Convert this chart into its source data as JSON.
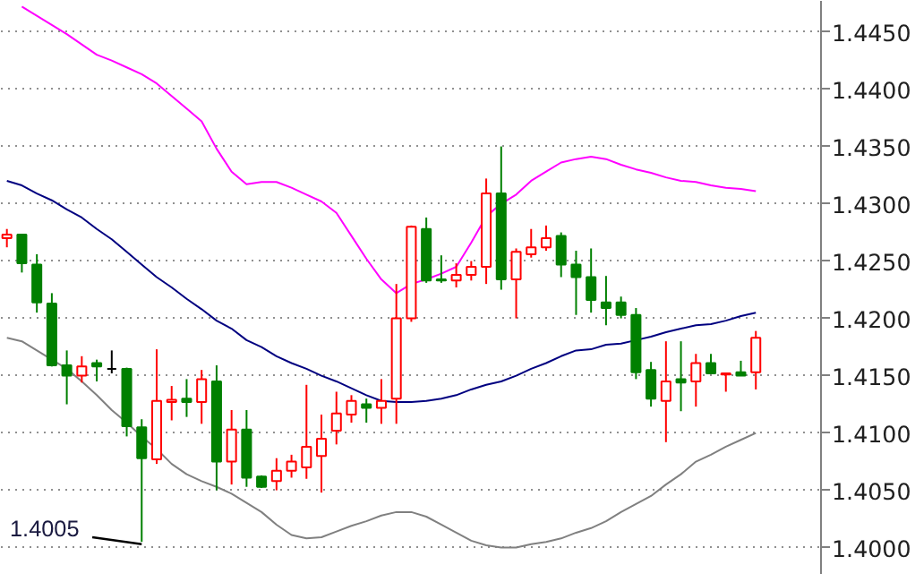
{
  "chart_data": {
    "type": "candlestick",
    "categories": [
      null,
      null,
      null,
      null,
      null,
      null,
      null,
      null,
      null,
      null,
      null,
      null,
      null,
      null,
      null,
      null,
      null,
      null,
      null,
      null,
      null,
      null,
      null,
      null,
      null,
      null,
      null,
      null,
      null,
      null,
      null,
      null,
      null,
      null,
      null,
      null,
      null,
      null,
      null,
      null,
      null,
      null,
      null,
      null,
      null,
      null,
      null,
      null,
      null,
      null,
      null
    ],
    "ohlc": [
      [
        1.427,
        1.4278,
        1.4262,
        1.4273
      ],
      [
        1.4273,
        1.4273,
        1.424,
        1.4248
      ],
      [
        1.4247,
        1.4256,
        1.4205,
        1.4214
      ],
      [
        1.4213,
        1.4222,
        1.4158,
        1.4159
      ],
      [
        1.4159,
        1.4172,
        1.4125,
        1.415
      ],
      [
        1.415,
        1.4167,
        1.4144,
        1.4158
      ],
      [
        1.4161,
        1.4164,
        1.4145,
        1.4158
      ],
      [
        1.4156,
        1.4172,
        1.4152,
        1.4156
      ],
      [
        1.4156,
        1.4157,
        1.4097,
        1.4106
      ],
      [
        1.4105,
        1.4112,
        1.4005,
        1.4078
      ],
      [
        1.4077,
        1.4173,
        1.4073,
        1.4128
      ],
      [
        1.4127,
        1.4141,
        1.4111,
        1.4129
      ],
      [
        1.413,
        1.4147,
        1.4114,
        1.4127
      ],
      [
        1.4127,
        1.4155,
        1.4108,
        1.4147
      ],
      [
        1.4145,
        1.4159,
        1.405,
        1.4075
      ],
      [
        1.4075,
        1.412,
        1.4055,
        1.4103
      ],
      [
        1.4103,
        1.412,
        1.4053,
        1.4061
      ],
      [
        1.4062,
        1.4063,
        1.4052,
        1.4053
      ],
      [
        1.4058,
        1.4078,
        1.405,
        1.4067
      ],
      [
        1.4067,
        1.4081,
        1.4061,
        1.4075
      ],
      [
        1.407,
        1.4142,
        1.406,
        1.4088
      ],
      [
        1.408,
        1.4116,
        1.4048,
        1.4095
      ],
      [
        1.4102,
        1.4136,
        1.409,
        1.4117
      ],
      [
        1.4116,
        1.4133,
        1.4109,
        1.4128
      ],
      [
        1.4125,
        1.413,
        1.4109,
        1.4122
      ],
      [
        1.4122,
        1.4147,
        1.4108,
        1.4128
      ],
      [
        1.413,
        1.423,
        1.4108,
        1.42
      ],
      [
        1.42,
        1.4281,
        1.4197,
        1.428
      ],
      [
        1.4278,
        1.4288,
        1.4231,
        1.4233
      ],
      [
        1.4234,
        1.4255,
        1.4231,
        1.4233
      ],
      [
        1.4233,
        1.4248,
        1.4227,
        1.4238
      ],
      [
        1.4238,
        1.425,
        1.4233,
        1.4245
      ],
      [
        1.4245,
        1.4322,
        1.423,
        1.4309
      ],
      [
        1.4309,
        1.435,
        1.4225,
        1.4234
      ],
      [
        1.4234,
        1.4261,
        1.42,
        1.4258
      ],
      [
        1.4256,
        1.4278,
        1.4253,
        1.4262
      ],
      [
        1.4262,
        1.4281,
        1.4259,
        1.427
      ],
      [
        1.4272,
        1.4275,
        1.4236,
        1.4247
      ],
      [
        1.4247,
        1.4259,
        1.4203,
        1.4236
      ],
      [
        1.4236,
        1.4261,
        1.4205,
        1.4216
      ],
      [
        1.4214,
        1.4237,
        1.4194,
        1.4209
      ],
      [
        1.4214,
        1.4219,
        1.42,
        1.4203
      ],
      [
        1.4203,
        1.4209,
        1.4147,
        1.4153
      ],
      [
        1.4155,
        1.4162,
        1.4123,
        1.413
      ],
      [
        1.4128,
        1.418,
        1.4092,
        1.4145
      ],
      [
        1.4147,
        1.418,
        1.4119,
        1.4144
      ],
      [
        1.4145,
        1.4169,
        1.4123,
        1.4161
      ],
      [
        1.4161,
        1.4169,
        1.4152,
        1.4152
      ],
      [
        1.4151,
        1.4152,
        1.4136,
        1.4152
      ],
      [
        1.4153,
        1.4163,
        1.415,
        1.415
      ],
      [
        1.4153,
        1.4189,
        1.4138,
        1.4183
      ]
    ],
    "colors": [
      "#ff0000",
      "#008000",
      "#008000",
      "#008000",
      "#008000",
      "#ff0000",
      "#008000",
      "#000000",
      "#008000",
      "#008000",
      "#ff0000",
      "#ff0000",
      "#008000",
      "#ff0000",
      "#008000",
      "#ff0000",
      "#008000",
      "#008000",
      "#ff0000",
      "#ff0000",
      "#ff0000",
      "#ff0000",
      "#ff0000",
      "#ff0000",
      "#008000",
      "#ff0000",
      "#ff0000",
      "#ff0000",
      "#008000",
      "#008000",
      "#ff0000",
      "#ff0000",
      "#ff0000",
      "#008000",
      "#ff0000",
      "#ff0000",
      "#ff0000",
      "#008000",
      "#008000",
      "#008000",
      "#008000",
      "#008000",
      "#008000",
      "#008000",
      "#ff0000",
      "#008000",
      "#ff0000",
      "#008000",
      "#ff0000",
      "#008000",
      "#ff0000"
    ],
    "series": [
      {
        "type": "line",
        "color": "#ff00ff",
        "values": [
          null,
          1.4472,
          1.4464,
          1.4456,
          1.4448,
          1.4439,
          1.443,
          1.4425,
          1.4419,
          1.4413,
          1.4405,
          1.4394,
          1.4383,
          1.4372,
          1.4348,
          1.4328,
          1.4317,
          1.4319,
          1.4319,
          1.4314,
          1.4308,
          1.4302,
          1.4292,
          1.4272,
          1.4252,
          1.4234,
          1.4222,
          1.423,
          1.4234,
          1.4239,
          1.4245,
          1.4266,
          1.4289,
          1.43,
          1.4308,
          1.432,
          1.4328,
          1.4336,
          1.4339,
          1.4341,
          1.4339,
          1.4334,
          1.433,
          1.4327,
          1.4323,
          1.432,
          1.4319,
          1.4316,
          1.4314,
          1.4313,
          1.4311
        ]
      },
      {
        "type": "line",
        "color": "#000080",
        "values": [
          1.432,
          1.4316,
          1.4309,
          1.4303,
          1.4295,
          1.4288,
          1.4278,
          1.4269,
          1.4258,
          1.4247,
          1.4236,
          1.4227,
          1.4217,
          1.4208,
          1.4198,
          1.4191,
          1.4181,
          1.4175,
          1.4167,
          1.4161,
          1.4156,
          1.415,
          1.4145,
          1.4139,
          1.4133,
          1.4128,
          1.4127,
          1.4127,
          1.4128,
          1.413,
          1.4133,
          1.4138,
          1.4142,
          1.4145,
          1.415,
          1.4156,
          1.4161,
          1.4167,
          1.4172,
          1.4173,
          1.4177,
          1.4178,
          1.4181,
          1.4184,
          1.4188,
          1.4191,
          1.4194,
          1.4195,
          1.4198,
          1.4202,
          1.4205
        ]
      },
      {
        "type": "line",
        "color": "#808080",
        "values": [
          1.4183,
          1.418,
          1.4172,
          1.4164,
          1.4156,
          1.4145,
          1.4133,
          1.412,
          1.4109,
          1.4097,
          1.4086,
          1.4073,
          1.4064,
          1.4058,
          1.4053,
          1.4047,
          1.4039,
          1.4031,
          1.402,
          1.4011,
          1.4008,
          1.4009,
          1.4014,
          1.4019,
          1.4023,
          1.4028,
          1.4031,
          1.4031,
          1.4027,
          1.402,
          1.4013,
          1.4006,
          1.4002,
          1.4,
          1.4,
          1.4003,
          1.4005,
          1.4008,
          1.4013,
          1.4017,
          1.4023,
          1.4031,
          1.4038,
          1.4045,
          1.4055,
          1.4064,
          1.4075,
          1.4081,
          1.4088,
          1.4094,
          1.41
        ]
      }
    ],
    "annotations": [
      "1.4005"
    ],
    "ylim": [
      1.3977,
      1.4477
    ],
    "yticks": [
      {
        "value": 1.4,
        "label": "1.4000"
      },
      {
        "value": 1.405,
        "label": "1.4050"
      },
      {
        "value": 1.41,
        "label": "1.4100"
      },
      {
        "value": 1.415,
        "label": "1.4150"
      },
      {
        "value": 1.42,
        "label": "1.4200"
      },
      {
        "value": 1.425,
        "label": "1.4250"
      },
      {
        "value": 1.43,
        "label": "1.4300"
      },
      {
        "value": 1.435,
        "label": "1.4350"
      },
      {
        "value": 1.44,
        "label": "1.4400"
      },
      {
        "value": 1.445,
        "label": "1.4450"
      }
    ],
    "grid": "y",
    "tick_labels": "y"
  }
}
